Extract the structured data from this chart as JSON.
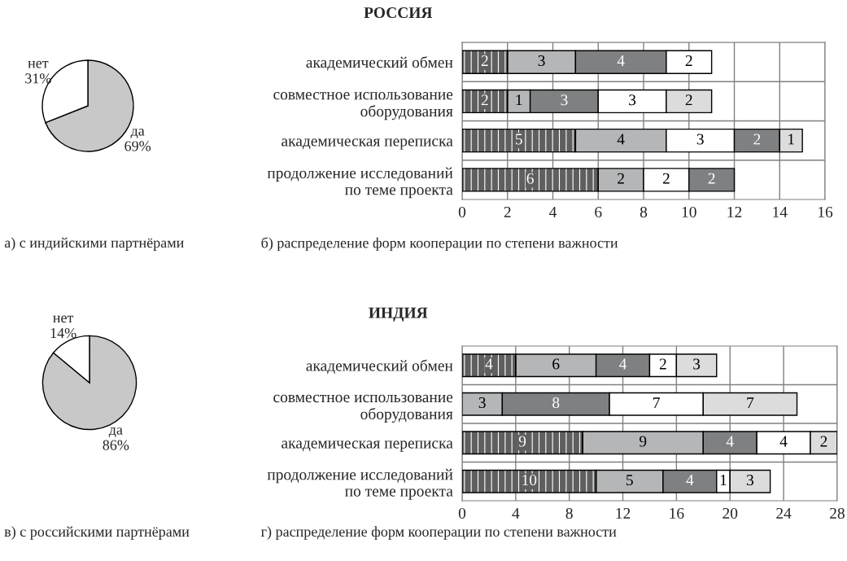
{
  "chart_data": [
    {
      "type": "pie",
      "title": "а) с индийскими партнёрами",
      "categories": [
        "да",
        "нет"
      ],
      "values": [
        69,
        31
      ],
      "value_labels": [
        "69%",
        "31%"
      ],
      "colors": [
        "#c8c8c8",
        "#ffffff"
      ]
    },
    {
      "type": "bar",
      "orientation": "horizontal",
      "stacked": true,
      "title": "РОССИЯ",
      "annotations": [
        "б) распределение форм кооперации по степени важности"
      ],
      "categories": [
        "академический обмен",
        "совместное использование\nоборудования",
        "академическая переписка",
        "продолжение исследований\nпо теме проекта"
      ],
      "series": [
        {
          "colors": [
            "#5f5f5f",
            "#5f5f5f",
            "#5f5f5f",
            "#5f5f5f"
          ],
          "values": [
            2,
            2,
            5,
            6
          ]
        },
        {
          "colors": [
            "#b4b6b7",
            "#b4b6b7",
            "#b4b6b7",
            "#b4b6b7"
          ],
          "values": [
            3,
            1,
            4,
            2
          ]
        },
        {
          "colors": [
            "#7f8082",
            "#7f8082",
            "#ffffff",
            "#ffffff"
          ],
          "values": [
            4,
            3,
            3,
            2
          ]
        },
        {
          "colors": [
            "#ffffff",
            "#ffffff",
            "#7f8082",
            "#7f8082"
          ],
          "values": [
            2,
            3,
            2,
            2
          ]
        },
        {
          "colors": [
            "#dcdcdc",
            "#dcdcdc",
            "#dcdcdc",
            "#dcdcdc"
          ],
          "values": [
            null,
            2,
            1,
            null
          ]
        }
      ],
      "xlim": [
        0,
        16
      ],
      "xticks": [
        0,
        2,
        4,
        6,
        8,
        10,
        12,
        14,
        16
      ],
      "grid": true,
      "data_labels": true
    },
    {
      "type": "pie",
      "title": "в) с российскими партнёрами",
      "categories": [
        "да",
        "нет"
      ],
      "values": [
        86,
        14
      ],
      "value_labels": [
        "86%",
        "14%"
      ],
      "colors": [
        "#c8c8c8",
        "#ffffff"
      ]
    },
    {
      "type": "bar",
      "orientation": "horizontal",
      "stacked": true,
      "title": "ИНДИЯ",
      "annotations": [
        "г) распределение форм кооперации по степени важности"
      ],
      "categories": [
        "академический обмен",
        "совместное использование\nоборудования",
        "академическая переписка",
        "продолжение исследований\nпо теме проекта"
      ],
      "series": [
        {
          "colors": [
            "#5f5f5f",
            "#b4b6b7",
            "#5f5f5f",
            "#5f5f5f"
          ],
          "values": [
            4,
            3,
            9,
            10
          ]
        },
        {
          "colors": [
            "#b4b6b7",
            "#7f8082",
            "#b4b6b7",
            "#b4b6b7"
          ],
          "values": [
            6,
            8,
            9,
            5
          ]
        },
        {
          "colors": [
            "#7f8082",
            "#ffffff",
            "#7f8082",
            "#7f8082"
          ],
          "values": [
            4,
            7,
            4,
            4
          ]
        },
        {
          "colors": [
            "#ffffff",
            "#dcdcdc",
            "#ffffff",
            "#ffffff"
          ],
          "values": [
            2,
            7,
            4,
            1
          ]
        },
        {
          "colors": [
            "#dcdcdc",
            "#dcdcdc",
            "#dcdcdc",
            "#dcdcdc"
          ],
          "values": [
            3,
            null,
            2,
            3
          ]
        }
      ],
      "xlim": [
        0,
        28
      ],
      "xticks": [
        0,
        4,
        8,
        12,
        16,
        20,
        24,
        28
      ],
      "grid": true,
      "data_labels": true
    }
  ]
}
